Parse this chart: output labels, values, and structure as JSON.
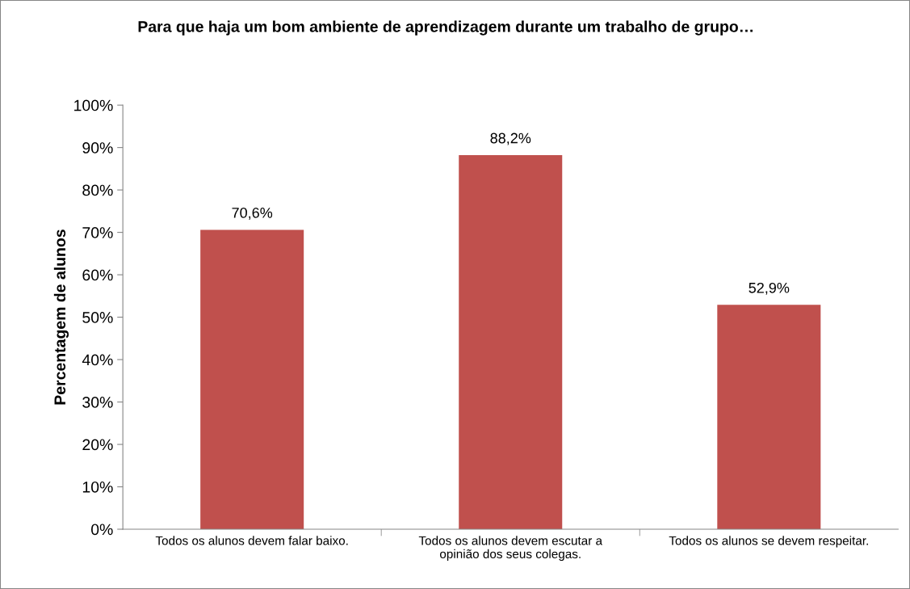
{
  "chart_data": {
    "type": "bar",
    "title": "Para que haja um bom ambiente de aprendizagem durante um trabalho de grupo…",
    "ylabel": "Percentagem de alunos",
    "categories": [
      "Todos os alunos devem falar baixo.",
      "Todos os alunos devem escutar a\nopinião dos seus colegas.",
      "Todos os alunos se devem respeitar."
    ],
    "values": [
      70.6,
      88.2,
      52.9
    ],
    "value_labels": [
      "70,6%",
      "88,2%",
      "52,9%"
    ],
    "color": "#c0504d",
    "ylim": [
      0,
      100
    ],
    "yticks": [
      {
        "value": 0,
        "label": "0%"
      },
      {
        "value": 10,
        "label": "10%"
      },
      {
        "value": 20,
        "label": "20%"
      },
      {
        "value": 30,
        "label": "30%"
      },
      {
        "value": 40,
        "label": "40%"
      },
      {
        "value": 50,
        "label": "50%"
      },
      {
        "value": 60,
        "label": "60%"
      },
      {
        "value": 70,
        "label": "70%"
      },
      {
        "value": 80,
        "label": "80%"
      },
      {
        "value": 90,
        "label": "90%"
      },
      {
        "value": 100,
        "label": "100%"
      }
    ],
    "grid": false,
    "legend": false
  }
}
